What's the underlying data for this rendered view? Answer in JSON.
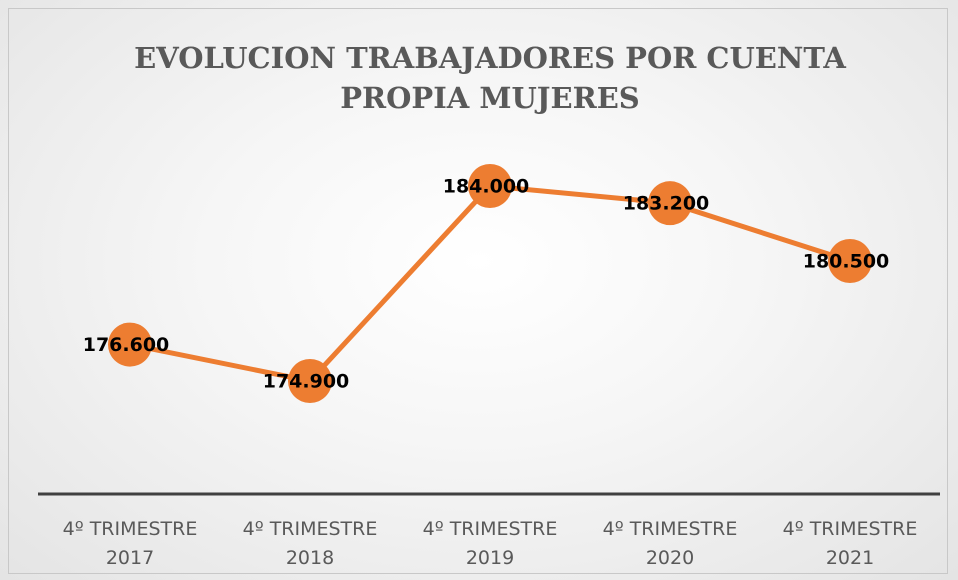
{
  "chart_data": {
    "type": "line",
    "title": "EVOLUCION TRABAJADORES POR CUENTA PROPIA MUJERES",
    "categories": [
      "4º TRIMESTRE 2017",
      "4º TRIMESTRE 2018",
      "4º TRIMESTRE 2019",
      "4º TRIMESTRE 2020",
      "4º TRIMESTRE 2021"
    ],
    "series": [
      {
        "name": "Mujeres",
        "color": "#ED7D31",
        "values": [
          176600,
          174900,
          184000,
          183200,
          180500
        ],
        "value_labels": [
          "176.600",
          "174.900",
          "184.000",
          "183.200",
          "180.500"
        ]
      }
    ]
  }
}
